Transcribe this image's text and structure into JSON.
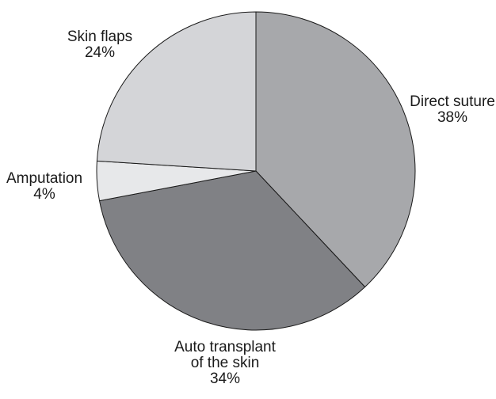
{
  "chart_data": {
    "type": "pie",
    "title": "",
    "start_angle_deg": 0,
    "direction": "clockwise",
    "slices": [
      {
        "label_lines": [
          "Direct suture"
        ],
        "pct_label": "38%",
        "value": 38,
        "color": "#a7a8ab"
      },
      {
        "label_lines": [
          "Auto transplant",
          "of the skin"
        ],
        "pct_label": "34%",
        "value": 34,
        "color": "#808185"
      },
      {
        "label_lines": [
          "Amputation"
        ],
        "pct_label": "4%",
        "value": 4,
        "color": "#e7e8ea"
      },
      {
        "label_lines": [
          "Skin flaps"
        ],
        "pct_label": "24%",
        "value": 24,
        "color": "#d4d5d8"
      }
    ],
    "outline_color": "#1a1a1a"
  }
}
